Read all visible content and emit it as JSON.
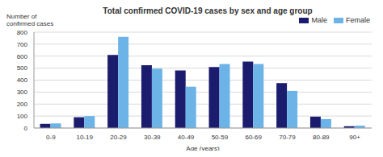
{
  "chart_data": {
    "type": "bar",
    "title": "Total confirmed COVID-19 cases by sex and age group",
    "x_label": "Age (years)",
    "y_label": "Number of confirmed cases",
    "categories": [
      "0-9",
      "10-19",
      "20-29",
      "30-39",
      "40-49",
      "50-59",
      "60-69",
      "70-79",
      "80-89",
      "90+"
    ],
    "series": [
      {
        "name": "Male",
        "color": "#1c1c6e",
        "values": [
          35,
          90,
          610,
          525,
          480,
          510,
          555,
          375,
          95,
          15
        ]
      },
      {
        "name": "Female",
        "color": "#6cb4e8",
        "values": [
          38,
          100,
          762,
          495,
          345,
          535,
          535,
          310,
          75,
          20
        ]
      }
    ],
    "ylim": [
      0,
      800
    ],
    "yticks": [
      0,
      100,
      200,
      300,
      400,
      500,
      600,
      700,
      800
    ],
    "grid": true,
    "legend": "upper right"
  }
}
